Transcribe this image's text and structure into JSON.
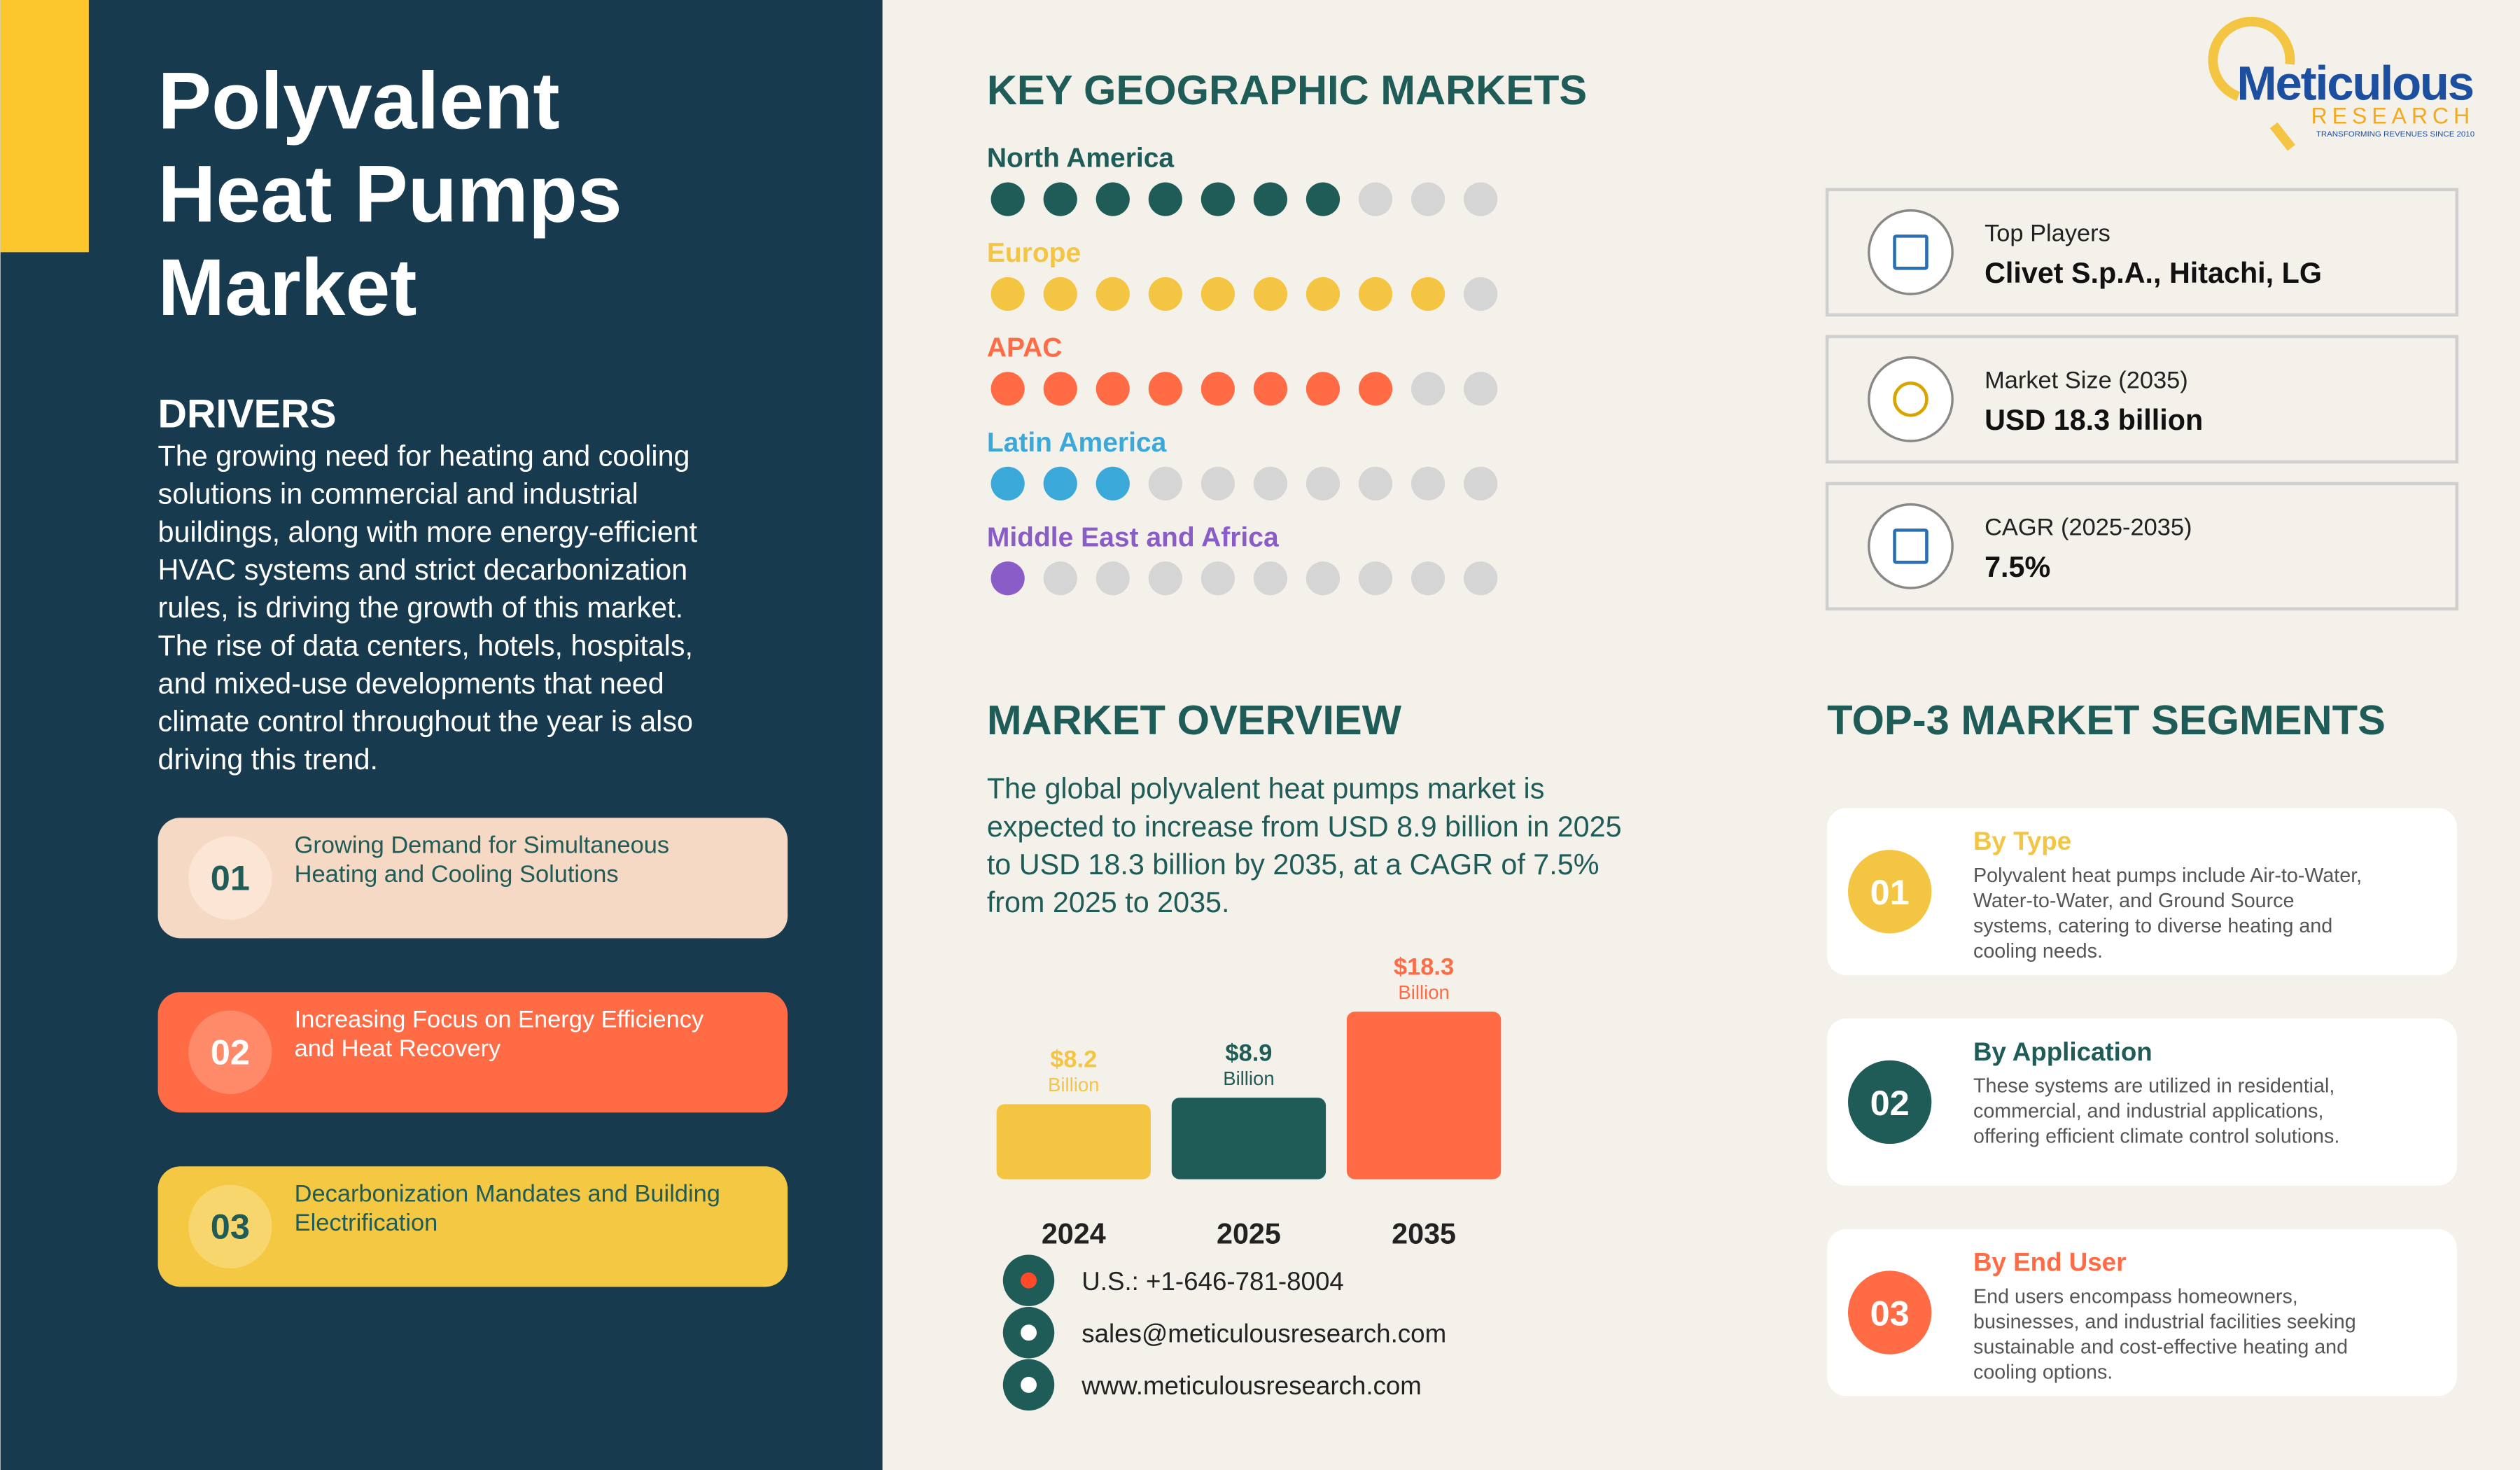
{
  "header": {
    "title_lines": [
      "Polyvalent",
      "Heat Pumps",
      "Market"
    ]
  },
  "drivers": {
    "heading": "DRIVERS",
    "lines": [
      "The growing need for heating and cooling",
      "solutions in commercial and industrial",
      "buildings, along with more energy-efficient",
      "HVAC systems and strict decarbonization",
      "rules, is driving the growth of this market.",
      "The rise of data centers, hotels, hospitals,",
      "and mixed-use developments that need",
      "climate control throughout the year is also",
      "driving this trend."
    ],
    "items": [
      {
        "number": "01",
        "lines": [
          "Growing Demand for Simultaneous",
          "Heating and Cooling Solutions"
        ]
      },
      {
        "number": "02",
        "lines": [
          "Increasing Focus on Energy Efficiency",
          "and Heat Recovery"
        ]
      },
      {
        "number": "03",
        "lines": [
          "Decarbonization Mandates and Building",
          "Electrification"
        ]
      }
    ]
  },
  "geo": {
    "heading": "KEY GEOGRAPHIC MARKETS",
    "regions": [
      {
        "name": "North America",
        "color": "#1f5c58",
        "filled": 7,
        "total": 10
      },
      {
        "name": "Europe",
        "color": "#f4c542",
        "filled": 9,
        "total": 10
      },
      {
        "name": "APAC",
        "color": "#ff6b45",
        "filled": 8,
        "total": 10
      },
      {
        "name": "Latin America",
        "color": "#3aa8d8",
        "filled": 3,
        "total": 10
      },
      {
        "name": "Middle East and Africa",
        "color": "#8a5cc7",
        "filled": 1,
        "total": 10
      }
    ]
  },
  "logo": {
    "name": "Meticulous",
    "sub": "RESEARCH",
    "tagline": "TRANSFORMING REVENUES SINCE 2010"
  },
  "stats": [
    {
      "label": "Top Players",
      "value": "Clivet S.p.A., Hitachi, LG"
    },
    {
      "label": "Market Size (2035)",
      "value": "USD 18.3 billion"
    },
    {
      "label": "CAGR (2025-2035)",
      "value": "7.5%"
    }
  ],
  "overview": {
    "heading": "MARKET OVERVIEW",
    "lines": [
      "The global polyvalent heat pumps market is",
      "expected to increase from USD 8.9 billion in 2025",
      "to USD 18.3 billion by 2035, at a CAGR of 7.5%",
      "from 2025 to 2035."
    ]
  },
  "chart_data": {
    "type": "bar",
    "categories": [
      "2024",
      "2025",
      "2035"
    ],
    "values": [
      8.2,
      8.9,
      18.3
    ],
    "value_labels": [
      "$8.2",
      "$8.9",
      "$18.3"
    ],
    "unit_label": "Billion",
    "colors": [
      "#f4c542",
      "#1f5c58",
      "#ff6b45"
    ]
  },
  "contact": {
    "phone": "U.S.: +1-646-781-8004",
    "email": "sales@meticulousresearch.com",
    "web": "www.meticulousresearch.com"
  },
  "segments": {
    "heading": "TOP-3 MARKET SEGMENTS",
    "items": [
      {
        "number": "01",
        "title": "By Type",
        "color": "#f4c542",
        "lines": [
          "Polyvalent heat pumps include Air-to-Water,",
          "Water-to-Water, and Ground Source",
          "systems, catering to diverse heating and",
          "cooling needs."
        ]
      },
      {
        "number": "02",
        "title": "By Application",
        "color": "#1f5c58",
        "lines": [
          "These systems are utilized in residential,",
          "commercial, and industrial applications,",
          "offering efficient climate control solutions."
        ]
      },
      {
        "number": "03",
        "title": "By End User",
        "color": "#ff6b45",
        "lines": [
          "End users encompass homeowners,",
          "businesses, and industrial facilities seeking",
          "sustainable and cost-effective heating and",
          "cooling options."
        ]
      }
    ]
  }
}
